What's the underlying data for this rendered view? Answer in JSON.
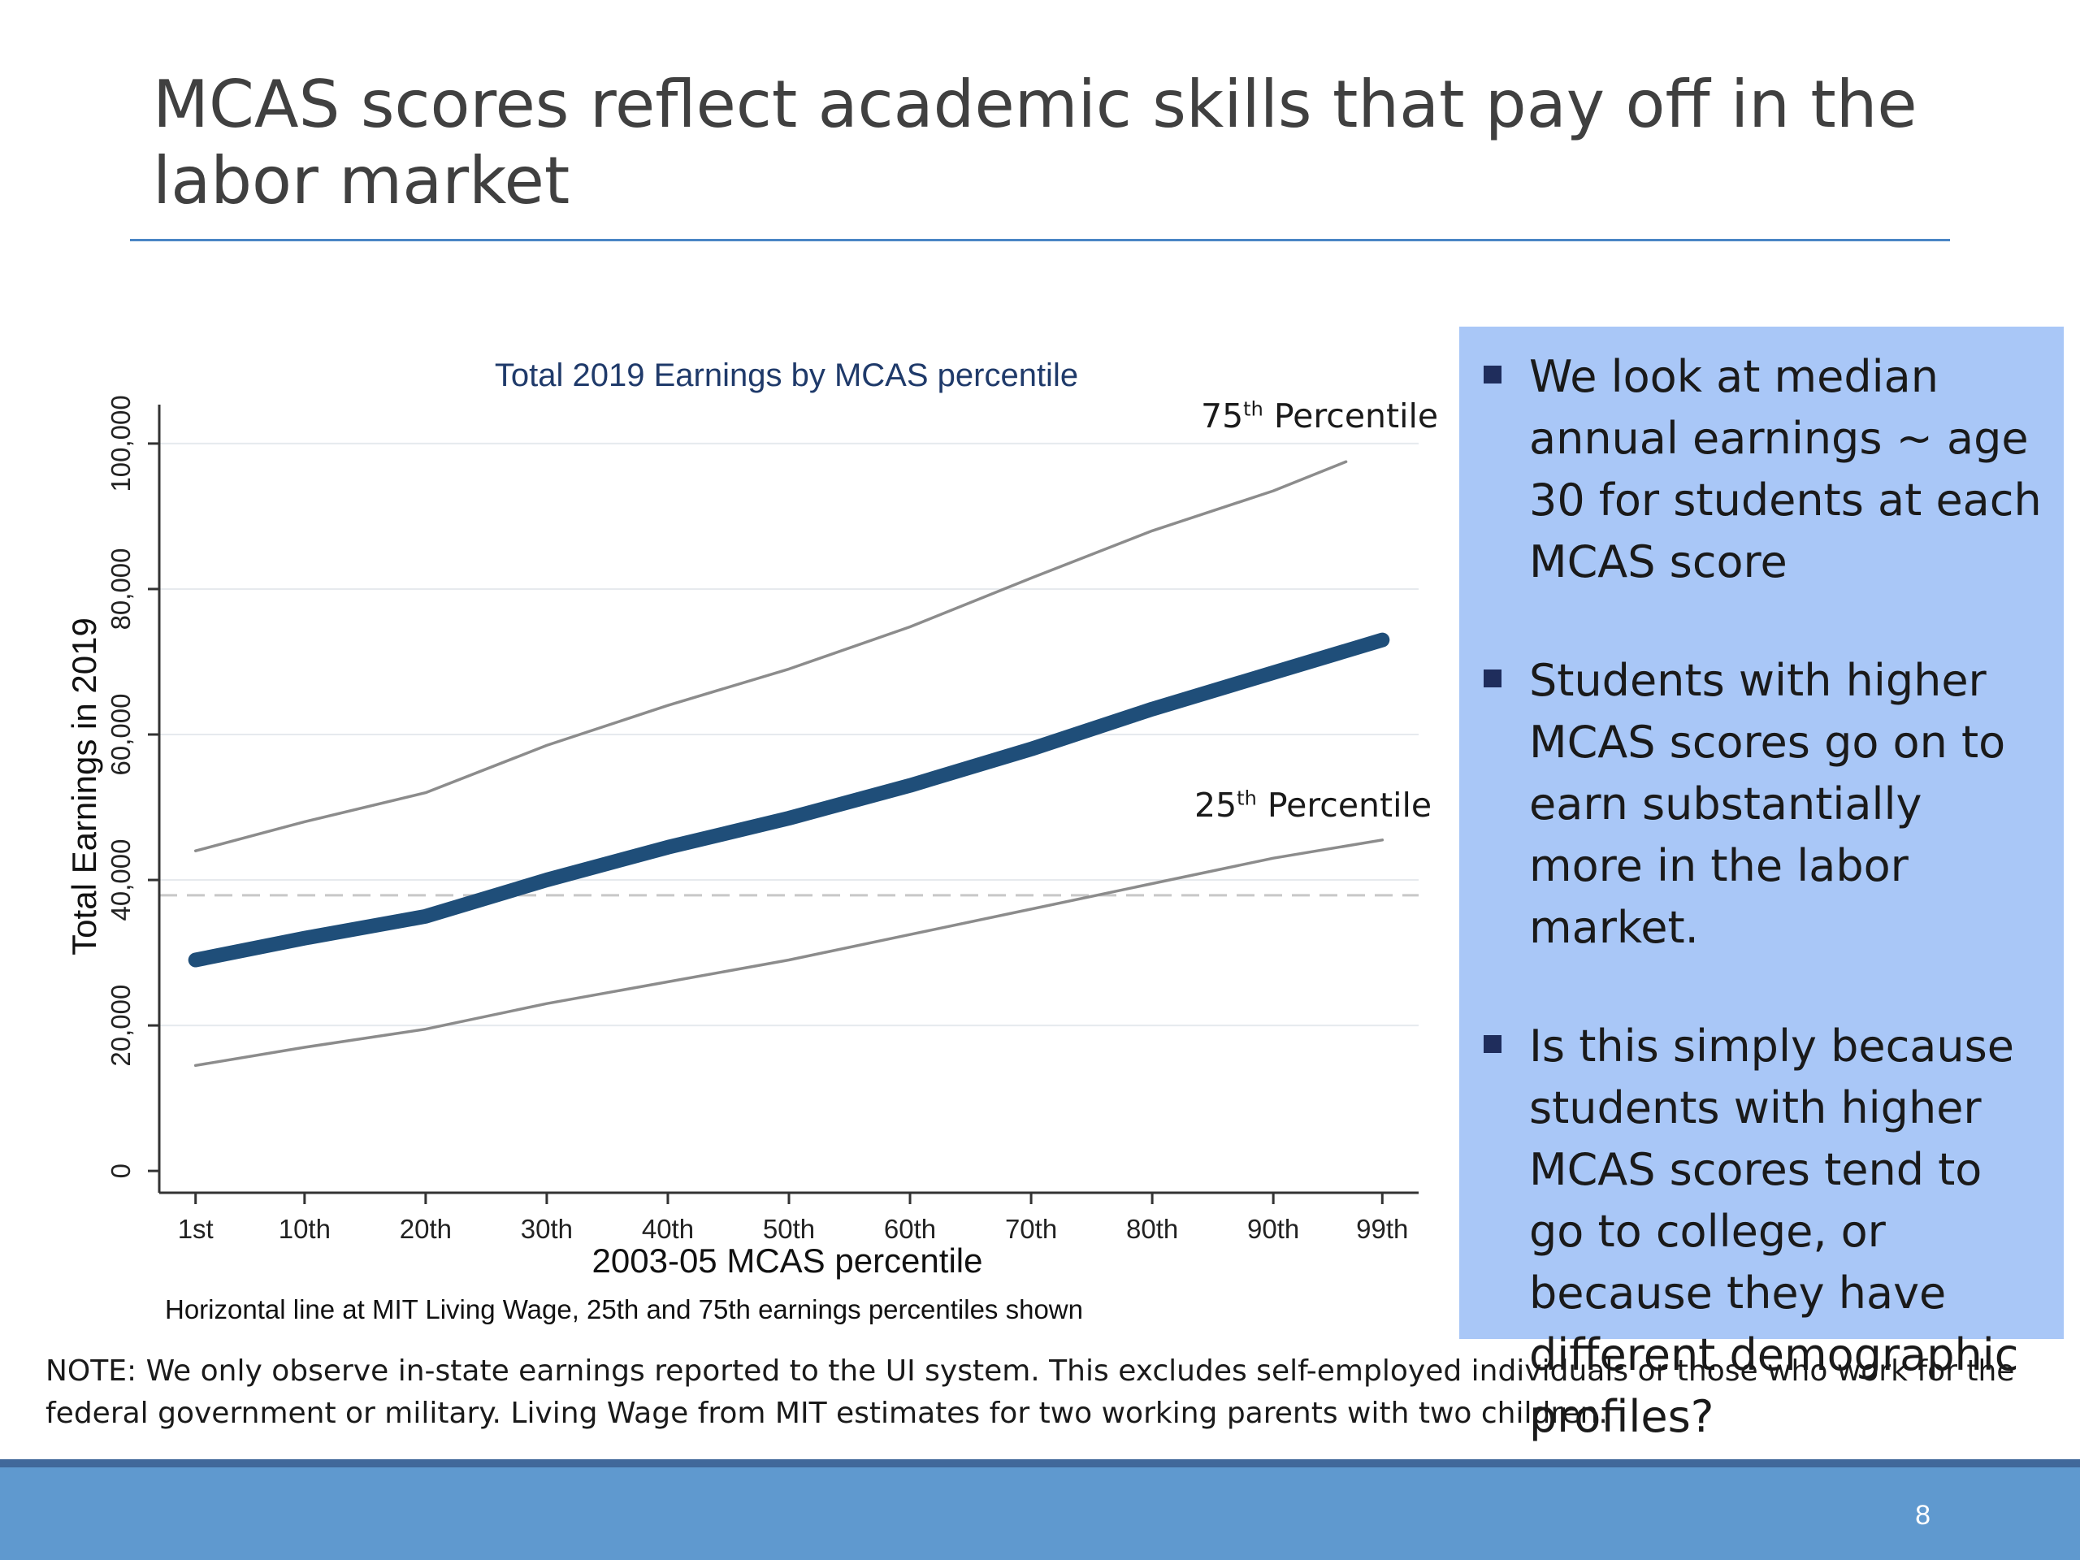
{
  "slide": {
    "title": "MCAS scores reflect academic skills that pay off in the labor market",
    "page_number": "8",
    "note": "NOTE: We only observe in-state earnings reported to the UI system. This excludes self-employed individuals or those who work for the federal government or military. Living Wage from MIT estimates for two working parents with two children."
  },
  "bullets": [
    {
      "text": "We look at median annual earnings ~ age 30 for students at each MCAS score"
    },
    {
      "text": "Students with higher MCAS scores go on to earn substantially more in the labor market."
    },
    {
      "text": "Is this simply because students with higher MCAS scores tend to go to college, or because they have different demographic profiles?"
    }
  ],
  "chart_data": {
    "type": "line",
    "title": "Total 2019 Earnings by MCAS percentile",
    "xlabel": "2003-05 MCAS percentile",
    "ylabel": "Total Earnings in 2019",
    "caption": "Horizontal line at MIT Living Wage, 25th and 75th earnings percentiles shown",
    "x_ticks": [
      {
        "value": 1,
        "label": "1st"
      },
      {
        "value": 10,
        "label": "10th"
      },
      {
        "value": 20,
        "label": "20th"
      },
      {
        "value": 30,
        "label": "30th"
      },
      {
        "value": 40,
        "label": "40th"
      },
      {
        "value": 50,
        "label": "50th"
      },
      {
        "value": 60,
        "label": "60th"
      },
      {
        "value": 70,
        "label": "70th"
      },
      {
        "value": 80,
        "label": "80th"
      },
      {
        "value": 90,
        "label": "90th"
      },
      {
        "value": 99,
        "label": "99th"
      }
    ],
    "y_ticks": [
      {
        "value": 0,
        "label": "0"
      },
      {
        "value": 20000,
        "label": "20,000"
      },
      {
        "value": 40000,
        "label": "40,000"
      },
      {
        "value": 60000,
        "label": "60,000"
      },
      {
        "value": 80000,
        "label": "80,000"
      },
      {
        "value": 100000,
        "label": "100,000"
      }
    ],
    "xlim": [
      -2,
      102
    ],
    "ylim": [
      -3000,
      102000
    ],
    "grid": true,
    "living_wage": 37900,
    "series": [
      {
        "key": "p75",
        "label_base": "75",
        "label_sup": "th",
        "label_rest": " Percentile",
        "color": "#8c8c8c",
        "x": [
          1,
          10,
          20,
          30,
          40,
          50,
          60,
          70,
          80,
          90,
          96
        ],
        "y": [
          44000,
          48000,
          52000,
          58500,
          64000,
          69000,
          74800,
          81500,
          88000,
          93500,
          97500
        ]
      },
      {
        "key": "median",
        "color": "#1f4e79",
        "x": [
          1,
          10,
          20,
          30,
          40,
          50,
          60,
          70,
          80,
          90,
          99
        ],
        "y": [
          29000,
          32000,
          35000,
          40000,
          44500,
          48500,
          53000,
          58000,
          63500,
          68500,
          73000
        ]
      },
      {
        "key": "p25",
        "label_base": "25",
        "label_sup": "th",
        "label_rest": " Percentile",
        "color": "#8c8c8c",
        "x": [
          1,
          10,
          20,
          30,
          40,
          50,
          60,
          70,
          80,
          90,
          99
        ],
        "y": [
          14500,
          17000,
          19500,
          23000,
          26000,
          29000,
          32500,
          36000,
          39500,
          43000,
          45500
        ]
      }
    ]
  }
}
